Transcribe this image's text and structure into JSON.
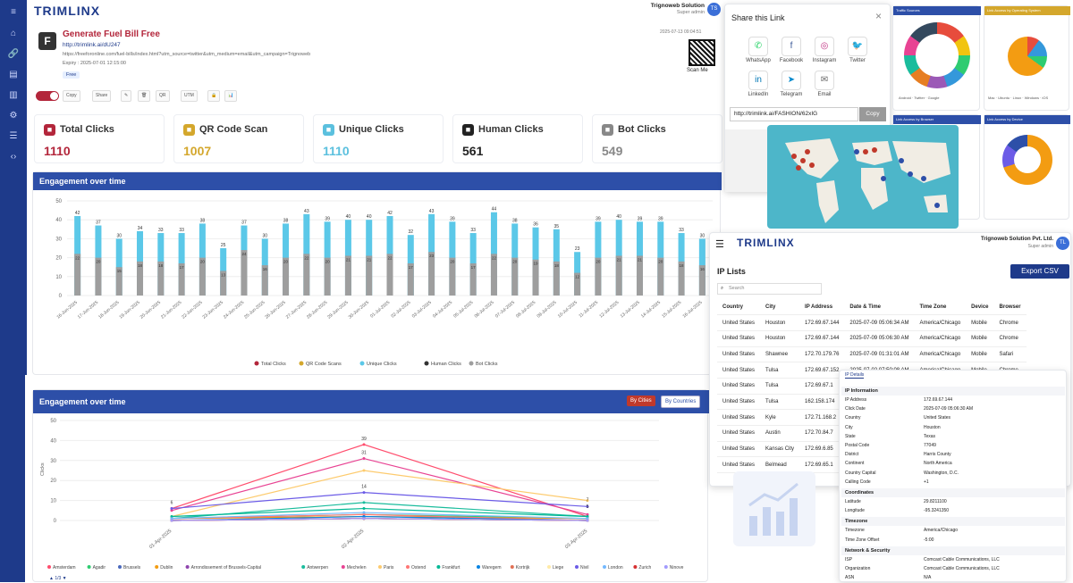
{
  "brand": {
    "logo": "TRIMLINX"
  },
  "user": {
    "org": "Trignoweb Solution",
    "role": "Super admin",
    "initials": "TS"
  },
  "link": {
    "title": "Generate Fuel Bill Free",
    "short_url": "http://trimlink.ai/dU247",
    "long_url": "https://freeforonline.com/fuel-bills/index.html?utm_source=twitter&utm_medium=email&utm_campaign=Trignoweb",
    "expiry": "Expiry : 2025-07-01 12:15:00",
    "tag": "Free",
    "created": "2025-07-13 09:04:51",
    "scan_label": "Scan Me",
    "icon_letter": "F"
  },
  "toolbar": {
    "copy": "Copy",
    "share": "Share",
    "edit": "✎",
    "delete": "🗑",
    "qr": "QR",
    "utm": "UTM",
    "lock": "🔒",
    "analytics": "📊"
  },
  "stats": [
    {
      "label": "Total Clicks",
      "value": "1110",
      "color": "#b3263b",
      "icon": "link-icon"
    },
    {
      "label": "QR Code Scan",
      "value": "1007",
      "color": "#d4a72c",
      "icon": "qr-icon"
    },
    {
      "label": "Unique Clicks",
      "value": "1110",
      "color": "#5bc0de",
      "icon": "cursor-icon"
    },
    {
      "label": "Human Clicks",
      "value": "561",
      "color": "#222222",
      "icon": "person-icon"
    },
    {
      "label": "Bot Clicks",
      "value": "549",
      "color": "#888888",
      "icon": "bot-icon"
    }
  ],
  "chart_data": [
    {
      "type": "bar",
      "title": "Engagement over time",
      "categories": [
        "16-Jun-2025",
        "17-Jun-2025",
        "18-Jun-2025",
        "19-Jun-2025",
        "20-Jun-2025",
        "21-Jun-2025",
        "22-Jun-2025",
        "23-Jun-2025",
        "24-Jun-2025",
        "25-Jun-2025",
        "26-Jun-2025",
        "27-Jun-2025",
        "28-Jun-2025",
        "29-Jun-2025",
        "30-Jun-2025",
        "01-Jul-2025",
        "02-Jul-2025",
        "03-Jul-2025",
        "04-Jul-2025",
        "05-Jul-2025",
        "06-Jul-2025",
        "07-Jul-2025",
        "08-Jul-2025",
        "09-Jul-2025",
        "10-Jul-2025",
        "11-Jul-2025",
        "12-Jul-2025",
        "13-Jul-2025",
        "14-Jul-2025",
        "15-Jul-2025",
        "16-Jul-2025"
      ],
      "series": [
        {
          "name": "Total Clicks",
          "color": "#b3263b"
        },
        {
          "name": "QR Code Scans",
          "color": "#d4a72c"
        },
        {
          "name": "Unique Clicks",
          "color": "#5bc8e8",
          "values": [
            42,
            37,
            30,
            34,
            33,
            33,
            38,
            25,
            37,
            30,
            38,
            43,
            39,
            40,
            40,
            42,
            32,
            43,
            39,
            33,
            44,
            38,
            36,
            35,
            23,
            39,
            40,
            39,
            39,
            33,
            30
          ]
        },
        {
          "name": "Human Clicks",
          "color": "#333333"
        },
        {
          "name": "Bot Clicks",
          "color": "#9e9e9e",
          "values": [
            22,
            20,
            15,
            18,
            18,
            17,
            20,
            13,
            24,
            16,
            20,
            22,
            20,
            21,
            21,
            22,
            17,
            23,
            20,
            17,
            22,
            20,
            19,
            18,
            12,
            20,
            21,
            21,
            20,
            18,
            16
          ]
        }
      ],
      "ylim": [
        0,
        50
      ],
      "yticks": [
        0,
        10,
        20,
        30,
        40,
        50
      ],
      "grid": true,
      "legend": "bottom"
    },
    {
      "type": "line",
      "title": "Engagement over time",
      "x": [
        "01-Apr-2025",
        "02-Apr-2025",
        "03-Apr-2025"
      ],
      "ylabel": "Clicks",
      "ylim": [
        0,
        50
      ],
      "yticks": [
        0,
        10,
        20,
        30,
        40,
        50
      ],
      "series": [
        {
          "name": "Amsterdam",
          "color": "#ff4d6d",
          "values": [
            6,
            38,
            2
          ]
        },
        {
          "name": "Agadir",
          "color": "#2ecc71",
          "values": [
            1,
            3,
            1
          ]
        },
        {
          "name": "Brussels",
          "color": "#4a69bd",
          "values": [
            0,
            1,
            0
          ]
        },
        {
          "name": "Dublin",
          "color": "#f39c12",
          "values": [
            1,
            2,
            1
          ]
        },
        {
          "name": "Arrondissement of Brussels-Capital",
          "color": "#8e44ad",
          "values": [
            0,
            1,
            0
          ]
        },
        {
          "name": "Antwerpen",
          "color": "#1abc9c",
          "values": [
            1,
            9,
            2
          ]
        },
        {
          "name": "Mechelen",
          "color": "#e84393",
          "values": [
            5,
            31,
            3
          ]
        },
        {
          "name": "Paris",
          "color": "#fdcb6e",
          "values": [
            2,
            25,
            10
          ]
        },
        {
          "name": "Ostend",
          "color": "#ff7675",
          "values": [
            1,
            3,
            0
          ]
        },
        {
          "name": "Frankfurt",
          "color": "#00b894",
          "values": [
            2,
            6,
            2
          ]
        },
        {
          "name": "Waregem",
          "color": "#0984e3",
          "values": [
            0,
            2,
            0
          ]
        },
        {
          "name": "Kortrijk",
          "color": "#e17055",
          "values": [
            0,
            1,
            0
          ]
        },
        {
          "name": "Liege",
          "color": "#ffeaa7",
          "values": [
            0,
            1,
            0
          ]
        },
        {
          "name": "Nivil",
          "color": "#6c5ce7",
          "values": [
            6,
            14,
            7
          ]
        },
        {
          "name": "London",
          "color": "#74b9ff",
          "values": [
            1,
            4,
            1
          ]
        },
        {
          "name": "Zurich",
          "color": "#d63031",
          "values": [
            0,
            1,
            0
          ]
        },
        {
          "name": "Ninove",
          "color": "#a29bfe",
          "values": [
            0,
            1,
            0
          ]
        }
      ],
      "labels": [
        {
          "v": "39"
        },
        {
          "v": "31"
        },
        {
          "v": "14"
        },
        {
          "v": "6"
        },
        {
          "v": "7"
        },
        {
          "v": "5"
        }
      ],
      "legend": "bottom"
    }
  ],
  "bar_panel": {
    "title": "Engagement over time"
  },
  "line_panel": {
    "title": "Engagement over time",
    "btn_cities": "By Cities",
    "btn_countries": "By Countries",
    "pager": "1/3"
  },
  "share": {
    "title": "Share this Link",
    "close": "×",
    "items": [
      "WhatsApp",
      "Facebook",
      "Instagram",
      "Twitter",
      "LinkedIn",
      "Telegram",
      "Email"
    ],
    "url": "http://trimlink.ai/FASHION/62xIG",
    "copy": "Copy"
  },
  "mini": {
    "traffic_sources": "Traffic Sources",
    "os": "Link Access by Operating System",
    "by_browser": "Link Access by Browser",
    "by_device": "Link Access by Device",
    "devices": [
      "Android",
      "Twitter",
      "Google"
    ],
    "os_legend": [
      "Mac",
      "Ubuntu",
      "Linux",
      "Windows",
      "iOS"
    ]
  },
  "ip": {
    "org": "Trignoweb Solution Pvt. Ltd.",
    "role": "Super admin",
    "initials": "TL",
    "title": "IP Lists",
    "export": "Export CSV",
    "search_placeholder": "Search",
    "headers": [
      "Country",
      "City",
      "IP Address",
      "Date & Time",
      "Time Zone",
      "Device",
      "Browser"
    ],
    "rows": [
      [
        "United States",
        "Houston",
        "172.69.67.144",
        "2025-07-09 05:06:34 AM",
        "America/Chicago",
        "Mobile",
        "Chrome"
      ],
      [
        "United States",
        "Houston",
        "172.69.67.144",
        "2025-07-09 05:06:30 AM",
        "America/Chicago",
        "Mobile",
        "Chrome"
      ],
      [
        "United States",
        "Shawnee",
        "172.70.179.76",
        "2025-07-09 01:31:01 AM",
        "America/Chicago",
        "Mobile",
        "Safari"
      ],
      [
        "United States",
        "Tulsa",
        "172.69.67.152",
        "2025-07-02 07:50:08 AM",
        "America/Chicago",
        "Mobile",
        "Chrome"
      ],
      [
        "United States",
        "Tulsa",
        "172.69.67.1",
        "",
        "",
        "",
        ""
      ],
      [
        "United States",
        "Tulsa",
        "162.158.174",
        "",
        "",
        "",
        ""
      ],
      [
        "United States",
        "Kyle",
        "172.71.168.2",
        "",
        "",
        "",
        ""
      ],
      [
        "United States",
        "Austin",
        "172.70.84.7",
        "",
        "",
        "",
        ""
      ],
      [
        "United States",
        "Kansas City",
        "172.69.6.85",
        "",
        "",
        "",
        ""
      ],
      [
        "United States",
        "Belmead",
        "172.69.65.1",
        "",
        "",
        "",
        ""
      ]
    ]
  },
  "details": {
    "tab": "IP Details",
    "sec1": "IP Information",
    "info": [
      [
        "IP Address",
        "172.69.67.144"
      ],
      [
        "Click Date",
        "2025-07-09 05:06:30 AM"
      ],
      [
        "Country",
        "United States"
      ],
      [
        "City",
        "Houston"
      ],
      [
        "State",
        "Texas"
      ],
      [
        "Postal Code",
        "77049"
      ],
      [
        "District",
        "Harris County"
      ],
      [
        "Continent",
        "North America"
      ],
      [
        "Country Capital",
        "Washington, D.C."
      ],
      [
        "Calling Code",
        "+1"
      ]
    ],
    "sec2": "Coordinates",
    "coords": [
      [
        "Latitude",
        "29.8211100"
      ],
      [
        "Longitude",
        "-95.3241350"
      ]
    ],
    "sec3": "Timezone",
    "tz": [
      [
        "Timezone",
        "America/Chicago"
      ],
      [
        "Time Zone Offset",
        "-5:00"
      ]
    ],
    "sec4": "Network & Security",
    "net": [
      [
        "ISP",
        "Comcast Cable Communications, LLC"
      ],
      [
        "Organization",
        "Comcast Cable Communications, LLC"
      ],
      [
        "ASN",
        "N/A"
      ]
    ]
  }
}
